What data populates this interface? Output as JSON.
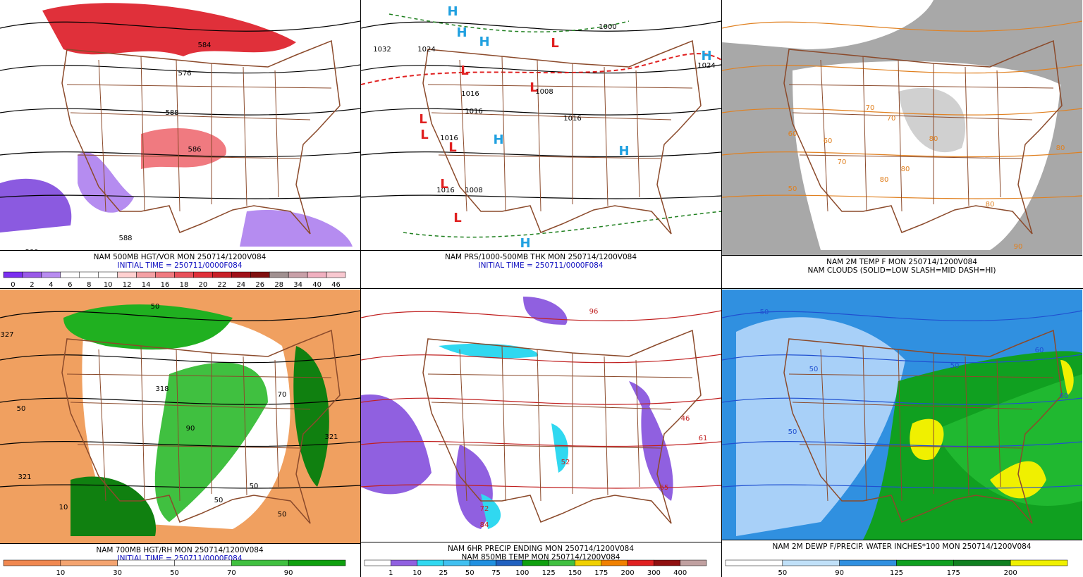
{
  "panels": [
    {
      "captions": [
        {
          "text": "NAM 500MB HGT/VOR MON 250714/1200V084",
          "color": "#000000"
        },
        {
          "text": "INITIAL TIME = 250711/0000F084",
          "color": "#1010c0"
        }
      ],
      "background": "#ffffff",
      "blobs": [
        {
          "color": "#e0303a"
        },
        {
          "color": "#f07a80"
        },
        {
          "color": "#8b5ae0"
        },
        {
          "color": "#b58cf0"
        }
      ],
      "map_labels": [
        "584",
        "576",
        "588",
        "586",
        "588",
        "588"
      ],
      "colorbar": {
        "labels": [
          0,
          2,
          4,
          6,
          8,
          10,
          12,
          14,
          16,
          18,
          20,
          22,
          24,
          26,
          28,
          34,
          40,
          46
        ],
        "colors": [
          "#7b2ff0",
          "#9a5ae8",
          "#b88cf0",
          "#ffffff",
          "#ffffff",
          "#ffffff",
          "#ffd0d0",
          "#f4a0a4",
          "#f07a80",
          "#e8505a",
          "#e0303a",
          "#c82028",
          "#a01018",
          "#801010",
          "#a09090",
          "#c8a0a8",
          "#f0b0c0",
          "#f8c8d0"
        ]
      }
    },
    {
      "captions": [
        {
          "text": "NAM PRS/1000-500MB THK MON 250714/1200V084",
          "color": "#000000"
        },
        {
          "text": "INITIAL TIME = 250711/0000F084",
          "color": "#1010c0"
        }
      ],
      "background": "#ffffff",
      "blobs": [],
      "map_labels": [
        "1032",
        "1024",
        "1016",
        "1016",
        "1016",
        "1008",
        "1000",
        "1016",
        "1008",
        "1024",
        "1016"
      ],
      "highs": [
        "H",
        "H",
        "H",
        "H",
        "H",
        "H",
        "H"
      ],
      "lows": [
        "L",
        "L",
        "L",
        "L",
        "L",
        "L",
        "L",
        "L"
      ]
    },
    {
      "captions": [
        {
          "text": "NAM 2M TEMP F MON 250714/1200V084",
          "color": "#000000"
        },
        {
          "text": "NAM CLOUDS (SOLID=LOW SLASH=MID DASH=HI)",
          "color": "#000000"
        }
      ],
      "background": "#a8a8a8",
      "blobs": [
        {
          "color": "#ffffff"
        },
        {
          "color": "#d0d0d0"
        },
        {
          "color": "#ffffff"
        }
      ],
      "map_labels": [
        "50",
        "60",
        "70",
        "70",
        "80",
        "80",
        "80",
        "70",
        "60",
        "80",
        "90",
        "80"
      ]
    },
    {
      "captions": [
        {
          "text": "NAM 700MB HGT/RH MON 250714/1200V084",
          "color": "#000000"
        },
        {
          "text": "INITIAL TIME = 250711/0000F084",
          "color": "#1010c0"
        }
      ],
      "background": "#f0a060",
      "blobs": [
        {
          "color": "#ffffff"
        },
        {
          "color": "#20b020"
        },
        {
          "color": "#40c040"
        },
        {
          "color": "#108010"
        }
      ],
      "map_labels": [
        "327",
        "321",
        "50",
        "318",
        "50",
        "90",
        "321",
        "70",
        "50",
        "50",
        "50",
        "10"
      ],
      "colorbar": {
        "labels": [
          10,
          30,
          50,
          70,
          90
        ],
        "colors": [
          "#f08850",
          "#f4a470",
          "#ffffff",
          "#ffffff",
          "#40c040",
          "#10a010"
        ]
      }
    },
    {
      "captions": [
        {
          "text": "NAM 6HR PRECIP ENDING MON 250714/1200V084",
          "color": "#000000"
        },
        {
          "text": "NAM 850MB TEMP MON 250714/1200V084",
          "color": "#000000"
        }
      ],
      "background": "#ffffff",
      "blobs": [
        {
          "color": "#9060e0"
        },
        {
          "color": "#30d8f0"
        },
        {
          "color": "#9060e0"
        }
      ],
      "map_labels": [
        "96",
        "46",
        "61",
        "52",
        "65",
        "72",
        "84"
      ],
      "colorbar": {
        "labels": [
          1,
          10,
          25,
          50,
          75,
          100,
          125,
          150,
          175,
          200,
          300,
          400
        ],
        "colors": [
          "#ffffff",
          "#9060e0",
          "#30d8f0",
          "#40c0f0",
          "#2090e0",
          "#2060c0",
          "#10a010",
          "#40c040",
          "#f0d000",
          "#f08000",
          "#e02020",
          "#901010",
          "#c0a0a0"
        ]
      }
    },
    {
      "captions": [
        {
          "text": "NAM 2M DEWP F/PRECIP. WATER INCHES*100 MON 250714/1200V084",
          "color": "#000000"
        }
      ],
      "background": "#3090e0",
      "blobs": [
        {
          "color": "#a8d0f8"
        },
        {
          "color": "#10a020"
        },
        {
          "color": "#20b830"
        },
        {
          "color": "#f0f000"
        }
      ],
      "map_labels": [
        "50",
        "50",
        "50",
        "60",
        "60",
        "50"
      ],
      "colorbar": {
        "labels": [
          50,
          90,
          125,
          175,
          200
        ],
        "colors": [
          "#ffffff",
          "#c0e0f8",
          "#3090e0",
          "#10a020",
          "#108020",
          "#f0f000"
        ]
      }
    }
  ]
}
